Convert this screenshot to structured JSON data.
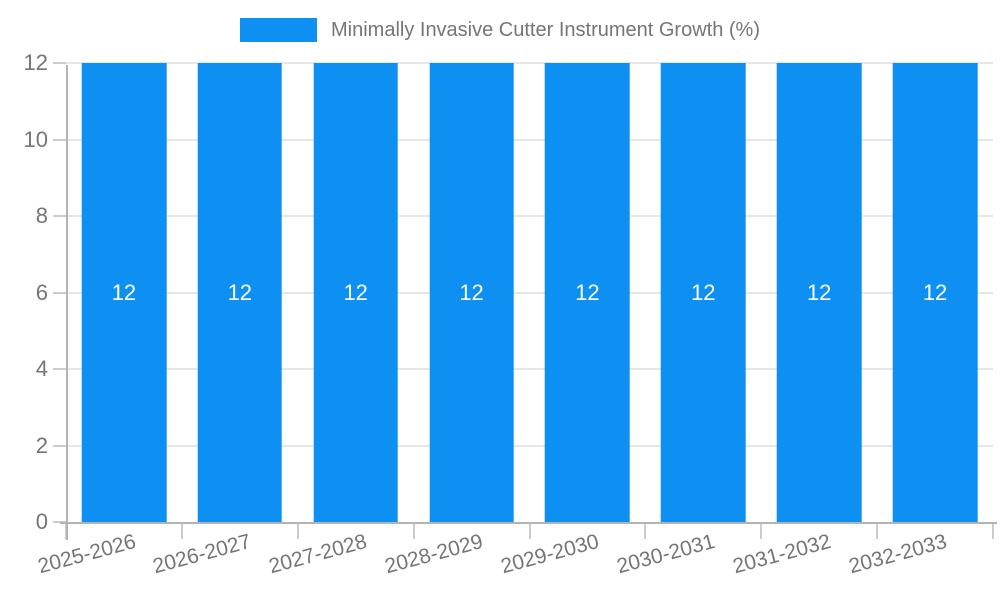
{
  "chart_data": {
    "type": "bar",
    "title": "Minimally Invasive Cutter Instrument Growth (%)",
    "categories": [
      "2025-2026",
      "2026-2027",
      "2027-2028",
      "2028-2029",
      "2029-2030",
      "2030-2031",
      "2031-2032",
      "2032-2033"
    ],
    "series": [
      {
        "name": "Minimally Invasive Cutter Instrument Growth (%)",
        "values": [
          12,
          12,
          12,
          12,
          12,
          12,
          12,
          12
        ]
      }
    ],
    "value_labels": [
      "12",
      "12",
      "12",
      "12",
      "12",
      "12",
      "12",
      "12"
    ],
    "xlabel": "",
    "ylabel": "",
    "ylim": [
      0,
      12
    ],
    "yticks": [
      0,
      2,
      4,
      6,
      8,
      10,
      12
    ],
    "grid": true,
    "legend_position": "top-center",
    "colors": {
      "bar": "#0d90f2",
      "value_label": "#ffffff",
      "axis_line": "#b3b3b3",
      "tick_line": "#cccccc",
      "gridline": "#e6e6e6",
      "tick_text": "#757575",
      "legend_text": "#757575",
      "background": "#ffffff"
    }
  },
  "legend": {
    "label": "Minimally Invasive Cutter Instrument Growth (%)"
  }
}
